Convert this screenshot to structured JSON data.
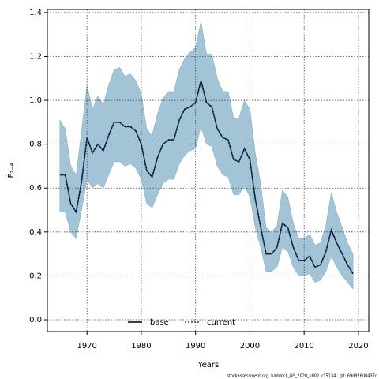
{
  "chart_data": {
    "type": "line",
    "xlabel": "Years",
    "ylabel": "F̄₂₋₄",
    "caption": "stockassessment.org, haddock_NS_2020_v002, r15134 , git: 69d926d0437d",
    "x": [
      1965,
      1966,
      1967,
      1968,
      1969,
      1970,
      1971,
      1972,
      1973,
      1974,
      1975,
      1976,
      1977,
      1978,
      1979,
      1980,
      1981,
      1982,
      1983,
      1984,
      1985,
      1986,
      1987,
      1988,
      1989,
      1990,
      1991,
      1992,
      1993,
      1994,
      1995,
      1996,
      1997,
      1998,
      1999,
      2000,
      2001,
      2002,
      2003,
      2004,
      2005,
      2006,
      2007,
      2008,
      2009,
      2010,
      2011,
      2012,
      2013,
      2014,
      2015,
      2016,
      2017,
      2018,
      2019
    ],
    "band": {
      "color": "#a3c4d6",
      "upper": [
        0.91,
        0.87,
        0.7,
        0.66,
        0.86,
        1.07,
        0.96,
        1.02,
        0.98,
        1.07,
        1.14,
        1.15,
        1.11,
        1.12,
        1.09,
        1.03,
        0.87,
        0.84,
        0.94,
        1.01,
        1.04,
        1.04,
        1.14,
        1.19,
        1.22,
        1.24,
        1.36,
        1.21,
        1.21,
        1.1,
        1.04,
        1.04,
        0.92,
        0.92,
        1.0,
        0.96,
        0.76,
        0.62,
        0.42,
        0.4,
        0.43,
        0.59,
        0.56,
        0.44,
        0.37,
        0.37,
        0.39,
        0.34,
        0.35,
        0.43,
        0.58,
        0.49,
        0.42,
        0.35,
        0.3
      ],
      "lower": [
        0.49,
        0.49,
        0.4,
        0.37,
        0.5,
        0.64,
        0.6,
        0.62,
        0.6,
        0.66,
        0.72,
        0.72,
        0.7,
        0.71,
        0.69,
        0.64,
        0.53,
        0.51,
        0.57,
        0.62,
        0.64,
        0.64,
        0.71,
        0.75,
        0.77,
        0.78,
        0.88,
        0.8,
        0.79,
        0.7,
        0.66,
        0.65,
        0.57,
        0.57,
        0.61,
        0.56,
        0.42,
        0.33,
        0.22,
        0.22,
        0.24,
        0.33,
        0.31,
        0.24,
        0.2,
        0.2,
        0.21,
        0.17,
        0.18,
        0.22,
        0.29,
        0.24,
        0.2,
        0.17,
        0.14
      ]
    },
    "series": [
      {
        "name": "base",
        "color": "#000000",
        "dash": false,
        "values": [
          0.66,
          0.66,
          0.53,
          0.49,
          0.63,
          0.83,
          0.76,
          0.8,
          0.77,
          0.84,
          0.9,
          0.9,
          0.88,
          0.88,
          0.86,
          0.8,
          0.68,
          0.65,
          0.74,
          0.8,
          0.82,
          0.82,
          0.91,
          0.96,
          0.97,
          0.99,
          1.09,
          0.99,
          0.97,
          0.87,
          0.83,
          0.82,
          0.73,
          0.72,
          0.78,
          0.73,
          0.55,
          0.42,
          0.3,
          0.3,
          0.33,
          0.44,
          0.42,
          0.33,
          0.27,
          0.27,
          0.29,
          0.24,
          0.25,
          0.31,
          0.41,
          0.35,
          0.3,
          0.25,
          0.21
        ]
      },
      {
        "name": "current",
        "color": "#1f4e8c",
        "dash": true,
        "values": [
          0.66,
          0.66,
          0.53,
          0.49,
          0.63,
          0.83,
          0.76,
          0.8,
          0.77,
          0.84,
          0.9,
          0.9,
          0.88,
          0.88,
          0.86,
          0.8,
          0.68,
          0.65,
          0.74,
          0.8,
          0.82,
          0.82,
          0.91,
          0.96,
          0.97,
          0.99,
          1.09,
          0.99,
          0.97,
          0.87,
          0.83,
          0.82,
          0.73,
          0.72,
          0.78,
          0.73,
          0.55,
          0.42,
          0.3,
          0.3,
          0.33,
          0.44,
          0.42,
          0.33,
          0.27,
          0.27,
          0.29,
          0.24,
          0.25,
          0.31,
          0.41,
          0.35,
          0.3,
          0.25,
          0.21
        ]
      }
    ],
    "xlim": [
      1962.7,
      2021.9
    ],
    "ylim": [
      -0.054,
      1.414
    ],
    "xticks": [
      1970,
      1980,
      1990,
      2000,
      2010,
      2020
    ],
    "yticks": [
      {
        "value": 0,
        "label": "0.0"
      },
      0.2,
      0.4,
      0.6,
      0.8,
      {
        "value": 1,
        "label": "1.0"
      },
      1.2,
      1.4
    ],
    "grid": true,
    "legend": "bottom"
  }
}
